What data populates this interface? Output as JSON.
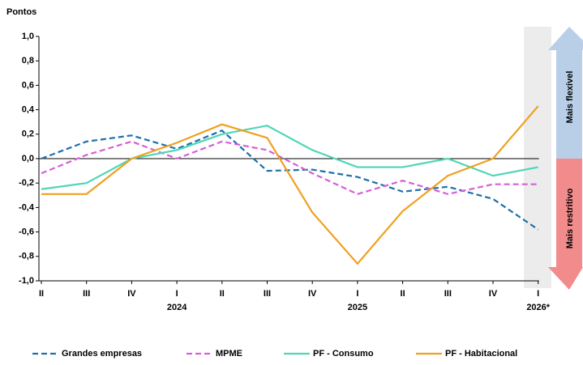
{
  "chart_data": {
    "type": "line",
    "y_label": "Pontos",
    "categories": [
      "II",
      "III",
      "IV",
      "I",
      "II",
      "III",
      "IV",
      "I",
      "II",
      "III",
      "IV",
      "I"
    ],
    "x_groups": [
      null,
      null,
      null,
      "2024",
      null,
      null,
      null,
      "2025",
      null,
      null,
      null,
      "2026*"
    ],
    "ylim": [
      -1.0,
      1.0
    ],
    "yticks": [
      {
        "value": -1.0,
        "label": "-1,0"
      },
      {
        "value": -0.8,
        "label": "-0,8"
      },
      {
        "value": -0.6,
        "label": "-0,6"
      },
      {
        "value": -0.4,
        "label": "-0,4"
      },
      {
        "value": -0.2,
        "label": "-0,2"
      },
      {
        "value": 0,
        "label": "0,0"
      },
      {
        "value": 0.2,
        "label": "0,2"
      },
      {
        "value": 0.4,
        "label": "0,4"
      },
      {
        "value": 0.6,
        "label": "0,6"
      },
      {
        "value": 0.8,
        "label": "0,8"
      },
      {
        "value": 1.0,
        "label": "1,0"
      }
    ],
    "grid": false,
    "series": [
      {
        "name": "Grandes empresas",
        "color": "#1f6fa8",
        "dashed": true,
        "values": [
          0.0,
          0.14,
          0.19,
          0.08,
          0.23,
          -0.1,
          -0.09,
          -0.15,
          -0.27,
          -0.23,
          -0.33,
          -0.58
        ]
      },
      {
        "name": "MPME",
        "color": "#d65fd6",
        "dashed": true,
        "values": [
          -0.12,
          0.03,
          0.14,
          0.0,
          0.14,
          0.07,
          -0.12,
          -0.29,
          -0.18,
          -0.29,
          -0.21,
          -0.21
        ]
      },
      {
        "name": "PF - Consumo",
        "color": "#4fd6b5",
        "dashed": false,
        "values": [
          -0.25,
          -0.2,
          0.0,
          0.07,
          0.2,
          0.27,
          0.07,
          -0.07,
          -0.07,
          0.0,
          -0.14,
          -0.07
        ]
      },
      {
        "name": "PF - Habitacional",
        "color": "#f0a020",
        "dashed": false,
        "values": [
          -0.29,
          -0.29,
          0.0,
          0.13,
          0.28,
          0.17,
          -0.44,
          -0.86,
          -0.43,
          -0.14,
          0.0,
          0.43
        ]
      }
    ],
    "annotations": [
      "Mais flexível",
      "Mais restritivo"
    ]
  }
}
